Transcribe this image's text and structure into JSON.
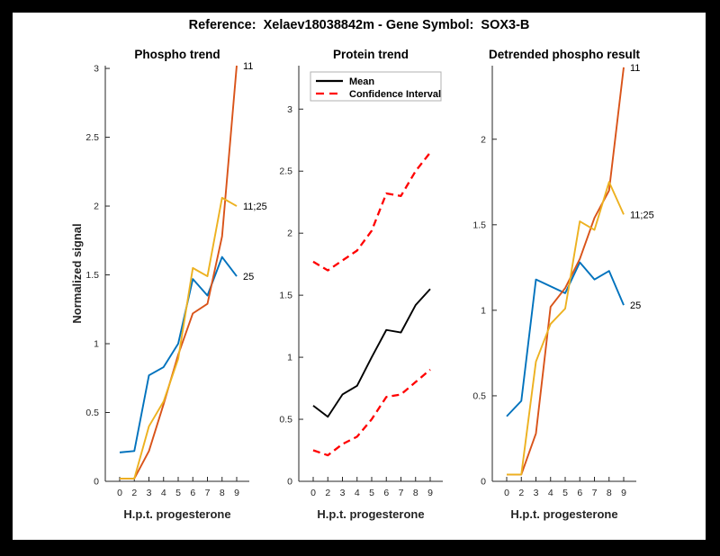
{
  "title": "Reference:  Xelaev18038842m - Gene Symbol:  SOX3-B",
  "style": {
    "background": "#000000",
    "figure_background": "#FFFFFF",
    "axis_color": "#262626",
    "tick_label_color": "#262626",
    "title_color": "#000000",
    "legend_border_color": "#b0b0b0",
    "series_blue": "#0072BD",
    "series_orange": "#D95319",
    "series_yellow": "#EDB120",
    "ci_red": "#FF0000",
    "mean_black": "#000000"
  },
  "chart_data": [
    {
      "type": "line",
      "title": "Phospho trend",
      "xlabel": "H.p.t. progesterone",
      "ylabel": "Normalized signal",
      "categories": [
        "0",
        "2",
        "3",
        "4",
        "5",
        "6",
        "7",
        "8",
        "9"
      ],
      "xticks": [
        "0",
        "2",
        "3",
        "4",
        "5",
        "6",
        "7",
        "8",
        "9"
      ],
      "yticks": [
        "0",
        "0.5",
        "1",
        "1.5",
        "2",
        "2.5",
        "3"
      ],
      "ylim": [
        0,
        3.02
      ],
      "grid": false,
      "legend": null,
      "series": [
        {
          "name": "25",
          "label": "25",
          "color": "#0072BD",
          "style": "solid",
          "values": [
            0.21,
            0.22,
            0.77,
            0.83,
            1.0,
            1.47,
            1.35,
            1.63,
            1.49
          ]
        },
        {
          "name": "11",
          "label": "11",
          "color": "#D95319",
          "style": "solid",
          "values": [
            0.02,
            0.02,
            0.22,
            0.56,
            0.92,
            1.22,
            1.29,
            1.78,
            3.02
          ]
        },
        {
          "name": "11;25",
          "label": "11;25",
          "color": "#EDB120",
          "style": "solid",
          "values": [
            0.02,
            0.02,
            0.4,
            0.58,
            0.89,
            1.55,
            1.49,
            2.06,
            2.0
          ]
        }
      ]
    },
    {
      "type": "line",
      "title": "Protein trend",
      "xlabel": "H.p.t. progesterone",
      "ylabel": "",
      "categories": [
        "0",
        "2",
        "3",
        "4",
        "5",
        "6",
        "7",
        "8",
        "9"
      ],
      "xticks": [
        "0",
        "2",
        "3",
        "4",
        "5",
        "6",
        "7",
        "8",
        "9"
      ],
      "yticks": [
        "0",
        "0.5",
        "1",
        "1.5",
        "2",
        "2.5",
        "3"
      ],
      "ylim": [
        0,
        3.35
      ],
      "grid": false,
      "legend": {
        "position": "northwest",
        "entries": [
          {
            "label": "Mean",
            "color": "#000000",
            "style": "solid"
          },
          {
            "label": "Confidence Interval",
            "color": "#FF0000",
            "style": "dashed"
          }
        ]
      },
      "series": [
        {
          "name": "mean",
          "label": "",
          "color": "#000000",
          "style": "solid",
          "values": [
            0.61,
            0.52,
            0.7,
            0.77,
            1.0,
            1.22,
            1.2,
            1.42,
            1.55
          ]
        },
        {
          "name": "ci-upper",
          "label": "",
          "color": "#FF0000",
          "style": "dashed",
          "values": [
            1.77,
            1.7,
            1.78,
            1.86,
            2.02,
            2.32,
            2.3,
            2.5,
            2.65
          ]
        },
        {
          "name": "ci-lower",
          "label": "",
          "color": "#FF0000",
          "style": "dashed",
          "values": [
            0.25,
            0.21,
            0.3,
            0.36,
            0.5,
            0.68,
            0.7,
            0.8,
            0.9
          ]
        }
      ]
    },
    {
      "type": "line",
      "title": "Detrended phospho result",
      "xlabel": "H.p.t. progesterone",
      "ylabel": "",
      "categories": [
        "0",
        "2",
        "3",
        "4",
        "5",
        "6",
        "7",
        "8",
        "9"
      ],
      "xticks": [
        "0",
        "2",
        "3",
        "4",
        "5",
        "6",
        "7",
        "8",
        "9"
      ],
      "yticks": [
        "0",
        "0.5",
        "1",
        "1.5",
        "2"
      ],
      "ylim": [
        0,
        2.43
      ],
      "grid": false,
      "legend": null,
      "series": [
        {
          "name": "25",
          "label": "25",
          "color": "#0072BD",
          "style": "solid",
          "values": [
            0.38,
            0.47,
            1.18,
            1.14,
            1.1,
            1.28,
            1.18,
            1.23,
            1.03
          ]
        },
        {
          "name": "11",
          "label": "11",
          "color": "#D95319",
          "style": "solid",
          "values": [
            0.04,
            0.04,
            0.28,
            1.02,
            1.13,
            1.3,
            1.54,
            1.7,
            2.42
          ]
        },
        {
          "name": "11;25",
          "label": "11;25",
          "color": "#EDB120",
          "style": "solid",
          "values": [
            0.04,
            0.04,
            0.7,
            0.92,
            1.01,
            1.52,
            1.47,
            1.75,
            1.56
          ]
        }
      ]
    }
  ]
}
